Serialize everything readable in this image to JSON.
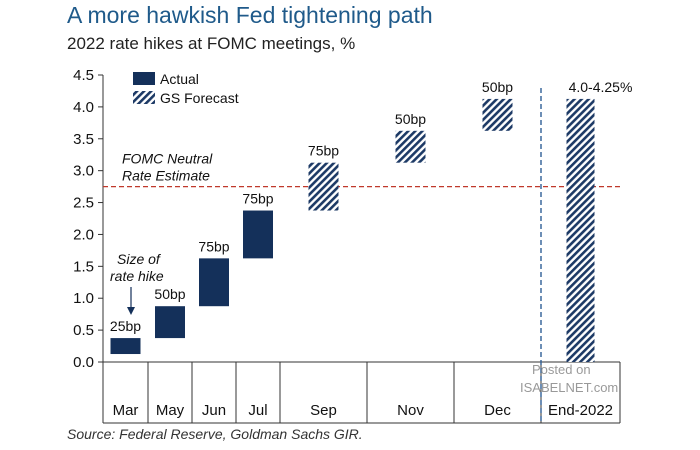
{
  "title": "A more hawkish Fed tightening path",
  "subtitle": "2022 rate hikes at FOMC meetings, %",
  "source": "Source: Federal Reserve, Goldman Sachs GIR.",
  "watermark": {
    "line1": "Posted on",
    "line2": "ISABELNET.com"
  },
  "colors": {
    "actual": "#14305a",
    "forecast": "#1d3a66",
    "neutral_line": "#c0392b",
    "divider": "#2f5f96",
    "title": "#1f5a8a"
  },
  "chart_data": {
    "type": "bar",
    "subtype": "waterfall",
    "ylim": [
      0,
      4.5
    ],
    "yticks": [
      "0.0",
      "0.5",
      "1.0",
      "1.5",
      "2.0",
      "2.5",
      "3.0",
      "3.5",
      "4.0",
      "4.5"
    ],
    "categories": [
      "Mar",
      "May",
      "Jun",
      "Jul",
      "Sep",
      "Nov",
      "Dec",
      "End-2022"
    ],
    "series": [
      {
        "name": "Actual",
        "style": "solid"
      },
      {
        "name": "GS Forecast",
        "style": "hatched"
      }
    ],
    "bars": [
      {
        "category": "Mar",
        "low": 0.125,
        "high": 0.375,
        "series": "Actual",
        "label": "25bp"
      },
      {
        "category": "May",
        "low": 0.375,
        "high": 0.875,
        "series": "Actual",
        "label": "50bp"
      },
      {
        "category": "Jun",
        "low": 0.875,
        "high": 1.625,
        "series": "Actual",
        "label": "75bp"
      },
      {
        "category": "Jul",
        "low": 1.625,
        "high": 2.375,
        "series": "Actual",
        "label": "75bp"
      },
      {
        "category": "Sep",
        "low": 2.375,
        "high": 3.125,
        "series": "GS Forecast",
        "label": "75bp"
      },
      {
        "category": "Nov",
        "low": 3.125,
        "high": 3.625,
        "series": "GS Forecast",
        "label": "50bp"
      },
      {
        "category": "Dec",
        "low": 3.625,
        "high": 4.125,
        "series": "GS Forecast",
        "label": "50bp"
      },
      {
        "category": "End-2022",
        "low": 0.0,
        "high": 4.125,
        "series": "GS Forecast",
        "label": "4.0-4.25%"
      }
    ],
    "reference_line": {
      "value": 2.75,
      "label_line1": "FOMC Neutral",
      "label_line2": "Rate Estimate"
    },
    "annotation": {
      "line1": "Size of",
      "line2": "rate hike"
    },
    "legend": "top-left"
  }
}
